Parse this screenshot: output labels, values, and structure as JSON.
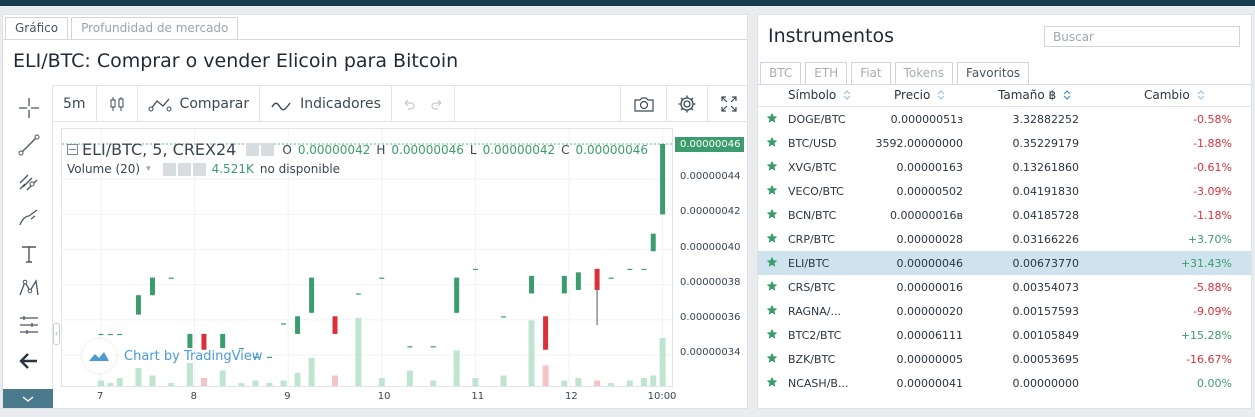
{
  "left": {
    "tabs": [
      {
        "label": "Gráfico",
        "active": true
      },
      {
        "label": "Profundidad de mercado",
        "active": false
      }
    ],
    "title": "ELI/BTC: Comprar o vender Elicoin para Bitcoin",
    "toolbar": {
      "interval": "5m",
      "compare_label": "Comparar",
      "indicators_label": "Indicadores"
    },
    "tools": [
      "crosshair-icon",
      "trend-line-icon",
      "fib-icon",
      "brush-icon",
      "text-icon",
      "pattern-icon",
      "measure-icon",
      "back-arrow-icon"
    ],
    "chart": {
      "symbol_line": "ELI/BTC, 5, CREX24",
      "o_label": "O",
      "o_value": "0.00000042",
      "h_label": "H",
      "h_value": "0.00000046",
      "l_label": "L",
      "l_value": "0.00000042",
      "c_label": "C",
      "c_value": "0.00000046",
      "volume_label": "Volume (20)",
      "volume_value": "4.521K",
      "volume_na": "no disponible",
      "watermark": "Chart by TradingView",
      "current_price": "0.00000046"
    }
  },
  "chart_data": {
    "type": "candlestick",
    "price_ticks": [
      "0.00000046",
      "0.00000044",
      "0.00000042",
      "0.00000040",
      "0.00000038",
      "0.00000036",
      "0.00000034"
    ],
    "time_ticks": [
      "7",
      "8",
      "9",
      "10",
      "11",
      "12",
      "10:00"
    ],
    "colors": {
      "up": "#3d9c6d",
      "down": "#d9303a",
      "vol_up": "#bfe5d1",
      "vol_down": "#f5c3c6"
    },
    "candles": [
      {
        "t": 7.0,
        "o": 3.52e-07,
        "h": 3.52e-07,
        "l": 3.52e-07,
        "c": 3.52e-07,
        "v": 3
      },
      {
        "t": 7.1,
        "o": 3.52e-07,
        "h": 3.52e-07,
        "l": 3.52e-07,
        "c": 3.52e-07,
        "v": 2
      },
      {
        "t": 7.2,
        "o": 3.52e-07,
        "h": 3.52e-07,
        "l": 3.52e-07,
        "c": 3.52e-07,
        "v": 4
      },
      {
        "t": 7.4,
        "o": 3.63e-07,
        "h": 3.74e-07,
        "l": 3.63e-07,
        "c": 3.74e-07,
        "v": 8
      },
      {
        "t": 7.55,
        "o": 3.74e-07,
        "h": 3.84e-07,
        "l": 3.74e-07,
        "c": 3.84e-07,
        "v": 5
      },
      {
        "t": 7.75,
        "o": 3.84e-07,
        "h": 3.84e-07,
        "l": 3.84e-07,
        "c": 3.84e-07,
        "v": 2
      },
      {
        "t": 7.95,
        "o": 3.44e-07,
        "h": 3.52e-07,
        "l": 3.44e-07,
        "c": 3.52e-07,
        "v": 10
      },
      {
        "t": 8.1,
        "o": 3.52e-07,
        "h": 3.52e-07,
        "l": 3.43e-07,
        "c": 3.43e-07,
        "v": 4
      },
      {
        "t": 8.3,
        "o": 3.44e-07,
        "h": 3.52e-07,
        "l": 3.44e-07,
        "c": 3.52e-07,
        "v": 7
      },
      {
        "t": 8.5,
        "o": 3.44e-07,
        "h": 3.44e-07,
        "l": 3.44e-07,
        "c": 3.44e-07,
        "v": 2
      },
      {
        "t": 8.65,
        "o": 3.39e-07,
        "h": 3.39e-07,
        "l": 3.39e-07,
        "c": 3.39e-07,
        "v": 3
      },
      {
        "t": 8.8,
        "o": 3.39e-07,
        "h": 3.39e-07,
        "l": 3.39e-07,
        "c": 3.39e-07,
        "v": 2
      },
      {
        "t": 8.95,
        "o": 3.58e-07,
        "h": 3.58e-07,
        "l": 3.58e-07,
        "c": 3.58e-07,
        "v": 3
      },
      {
        "t": 9.1,
        "o": 3.52e-07,
        "h": 3.62e-07,
        "l": 3.52e-07,
        "c": 3.62e-07,
        "v": 6
      },
      {
        "t": 9.25,
        "o": 3.64e-07,
        "h": 3.84e-07,
        "l": 3.64e-07,
        "c": 3.84e-07,
        "v": 12
      },
      {
        "t": 9.5,
        "o": 3.62e-07,
        "h": 3.62e-07,
        "l": 3.52e-07,
        "c": 3.52e-07,
        "v": 5
      },
      {
        "t": 9.75,
        "o": 3.75e-07,
        "h": 3.75e-07,
        "l": 3.75e-07,
        "c": 3.75e-07,
        "v": 28
      },
      {
        "t": 10.0,
        "o": 3.84e-07,
        "h": 3.84e-07,
        "l": 3.84e-07,
        "c": 3.84e-07,
        "v": 4
      },
      {
        "t": 10.3,
        "o": 3.45e-07,
        "h": 3.45e-07,
        "l": 3.45e-07,
        "c": 3.45e-07,
        "v": 7
      },
      {
        "t": 10.55,
        "o": 3.45e-07,
        "h": 3.45e-07,
        "l": 3.45e-07,
        "c": 3.45e-07,
        "v": 3
      },
      {
        "t": 10.8,
        "o": 3.64e-07,
        "h": 3.84e-07,
        "l": 3.64e-07,
        "c": 3.84e-07,
        "v": 15
      },
      {
        "t": 11.0,
        "o": 3.89e-07,
        "h": 3.89e-07,
        "l": 3.89e-07,
        "c": 3.89e-07,
        "v": 4
      },
      {
        "t": 11.3,
        "o": 3.62e-07,
        "h": 3.62e-07,
        "l": 3.62e-07,
        "c": 3.62e-07,
        "v": 5
      },
      {
        "t": 11.6,
        "o": 3.75e-07,
        "h": 3.85e-07,
        "l": 3.75e-07,
        "c": 3.85e-07,
        "v": 27
      },
      {
        "t": 11.75,
        "o": 3.62e-07,
        "h": 3.62e-07,
        "l": 3.43e-07,
        "c": 3.43e-07,
        "v": 9
      },
      {
        "t": 11.95,
        "o": 3.75e-07,
        "h": 3.85e-07,
        "l": 3.75e-07,
        "c": 3.85e-07,
        "v": 3
      },
      {
        "t": 12.1,
        "o": 3.77e-07,
        "h": 3.87e-07,
        "l": 3.77e-07,
        "c": 3.87e-07,
        "v": 4
      },
      {
        "t": 12.3,
        "o": 3.89e-07,
        "h": 3.89e-07,
        "l": 3.57e-07,
        "c": 3.77e-07,
        "v": 3
      },
      {
        "t": 12.45,
        "o": 3.84e-07,
        "h": 3.84e-07,
        "l": 3.84e-07,
        "c": 3.84e-07,
        "v": 2
      },
      {
        "t": 12.65,
        "o": 3.89e-07,
        "h": 3.89e-07,
        "l": 3.89e-07,
        "c": 3.89e-07,
        "v": 3
      },
      {
        "t": 12.8,
        "o": 3.89e-07,
        "h": 3.89e-07,
        "l": 3.89e-07,
        "c": 3.89e-07,
        "v": 4
      },
      {
        "t": 12.9,
        "o": 3.99e-07,
        "h": 4.09e-07,
        "l": 3.99e-07,
        "c": 4.09e-07,
        "v": 5
      },
      {
        "t": 13.0,
        "o": 4.2e-07,
        "h": 4.6e-07,
        "l": 4.2e-07,
        "c": 4.6e-07,
        "v": 20
      }
    ]
  },
  "right": {
    "title": "Instrumentos",
    "search_placeholder": "Buscar",
    "tabs": [
      {
        "label": "BTC",
        "active": false
      },
      {
        "label": "ETH",
        "active": false
      },
      {
        "label": "Fiat",
        "active": false
      },
      {
        "label": "Tokens",
        "active": false
      },
      {
        "label": "Favoritos",
        "active": true
      }
    ],
    "columns": {
      "symbol": "Símbolo",
      "price": "Precio",
      "size": "Tamaño ฿",
      "change": "Cambio"
    },
    "rows": [
      {
        "symbol": "DOGE/BTC",
        "price": "0.00000051з",
        "size": "3.32882252",
        "change": "-0.58%",
        "dir": "neg",
        "selected": false
      },
      {
        "symbol": "BTC/USD",
        "price": "3592.00000000",
        "size": "0.35229179",
        "change": "-1.88%",
        "dir": "neg",
        "selected": false
      },
      {
        "symbol": "XVG/BTC",
        "price": "0.00000163",
        "size": "0.13261860",
        "change": "-0.61%",
        "dir": "neg",
        "selected": false
      },
      {
        "symbol": "VECO/BTC",
        "price": "0.00000502",
        "size": "0.04191830",
        "change": "-3.09%",
        "dir": "neg",
        "selected": false
      },
      {
        "symbol": "BCN/BTC",
        "price": "0.00000016в",
        "size": "0.04185728",
        "change": "-1.18%",
        "dir": "neg",
        "selected": false
      },
      {
        "symbol": "CRP/BTC",
        "price": "0.00000028",
        "size": "0.03166226",
        "change": "+3.70%",
        "dir": "pos",
        "selected": false
      },
      {
        "symbol": "ELI/BTC",
        "price": "0.00000046",
        "size": "0.00673770",
        "change": "+31.43%",
        "dir": "pos",
        "selected": true
      },
      {
        "symbol": "CRS/BTC",
        "price": "0.00000016",
        "size": "0.00354073",
        "change": "-5.88%",
        "dir": "neg",
        "selected": false
      },
      {
        "symbol": "RAGNA/...",
        "price": "0.00000020",
        "size": "0.00157593",
        "change": "-9.09%",
        "dir": "neg",
        "selected": false
      },
      {
        "symbol": "BTC2/BTC",
        "price": "0.00006111",
        "size": "0.00105849",
        "change": "+15.28%",
        "dir": "pos",
        "selected": false
      },
      {
        "symbol": "BZK/BTC",
        "price": "0.00000005",
        "size": "0.00053695",
        "change": "-16.67%",
        "dir": "neg",
        "selected": false
      },
      {
        "symbol": "NCASH/B...",
        "price": "0.00000041",
        "size": "0.00000000",
        "change": "0.00%",
        "dir": "pos",
        "selected": false
      }
    ]
  }
}
